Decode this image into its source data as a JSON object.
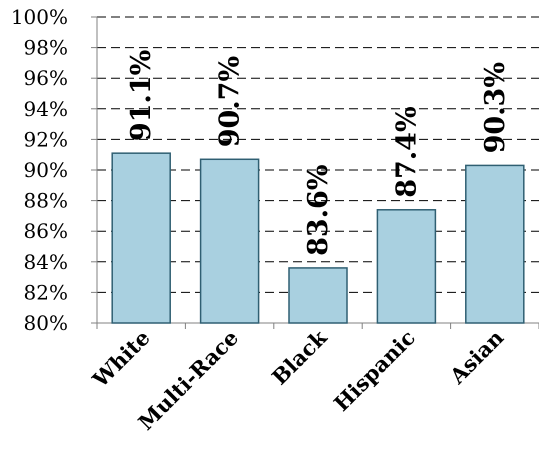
{
  "chart_data": {
    "type": "bar",
    "categories": [
      "White",
      "Multi-Race",
      "Black",
      "Hispanic",
      "Asian"
    ],
    "values": [
      91.1,
      90.7,
      83.6,
      87.4,
      90.3
    ],
    "data_labels": [
      "91.1%",
      "90.7%",
      "83.6%",
      "87.4%",
      "90.3%"
    ],
    "y_ticks": [
      "80%",
      "82%",
      "84%",
      "86%",
      "88%",
      "90%",
      "92%",
      "94%",
      "96%",
      "98%",
      "100%"
    ],
    "ylim": [
      80,
      100
    ],
    "title": "",
    "xlabel": "",
    "ylabel": "",
    "grid": "horizontal dashed",
    "legend": "none",
    "colors": {
      "bar_fill": "#a9d0e0",
      "bar_stroke": "#2f5f72",
      "grid": "#000000",
      "axis": "#808080"
    }
  }
}
